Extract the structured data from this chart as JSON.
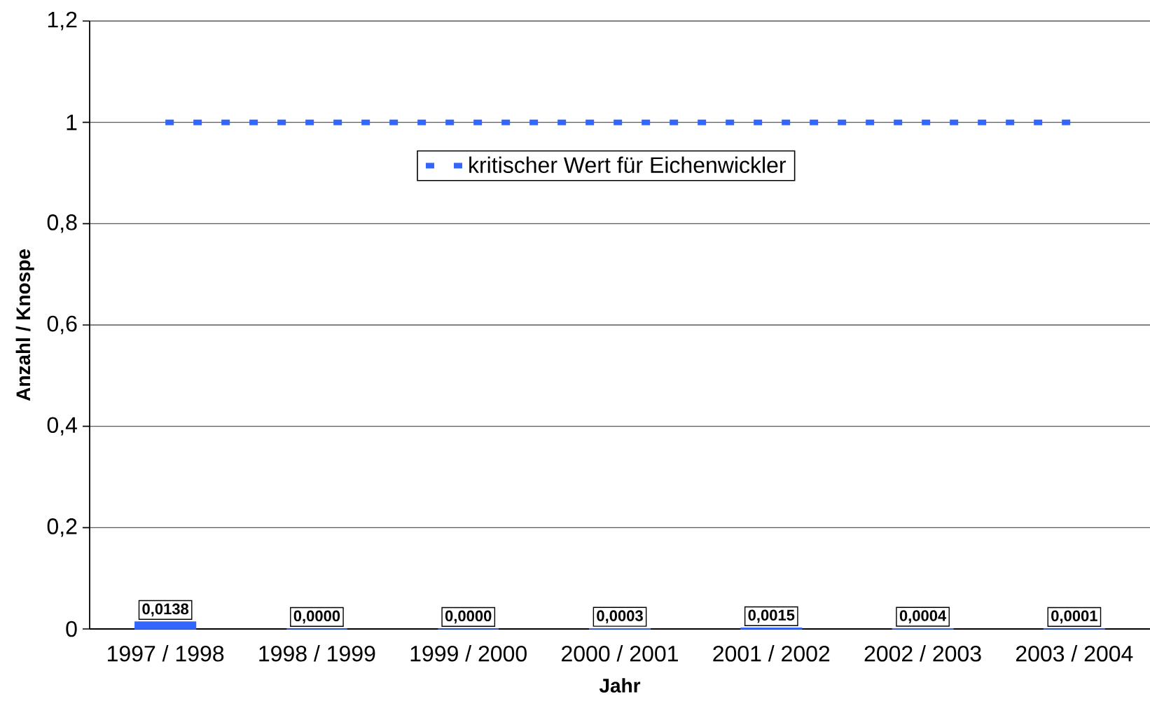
{
  "chart_data": {
    "type": "bar",
    "xlabel": "Jahr",
    "ylabel": "Anzahl / Knospe",
    "categories": [
      "1997 / 1998",
      "1998 / 1999",
      "1999 / 2000",
      "2000 / 2001",
      "2001 / 2002",
      "2002 / 2003",
      "2003 / 2004"
    ],
    "series": [
      {
        "color": "#3366ff",
        "values": [
          0.0138,
          0.0,
          0.0,
          0.0003,
          0.0015,
          0.0004,
          0.0001
        ],
        "value_labels": [
          "0,0138",
          "0,0000",
          "0,0000",
          "0,0003",
          "0,0015",
          "0,0004",
          "0,0001"
        ]
      },
      {
        "type": "line",
        "name": "kritischer Wert für Eichenwickler",
        "color": "#3366ff",
        "line_style": "dashed",
        "values": [
          1,
          1,
          1,
          1,
          1,
          1,
          1
        ]
      }
    ],
    "ylim": [
      0,
      1.2
    ],
    "yticks": [
      0,
      {
        "value": 0.2,
        "label": "0,2"
      },
      {
        "value": 0.4,
        "label": "0,4"
      },
      {
        "value": 0.6,
        "label": "0,6"
      },
      {
        "value": 0.8,
        "label": "0,8"
      },
      1,
      {
        "value": 1.2,
        "label": "1,2"
      }
    ],
    "grid": "y",
    "legend": "top"
  }
}
